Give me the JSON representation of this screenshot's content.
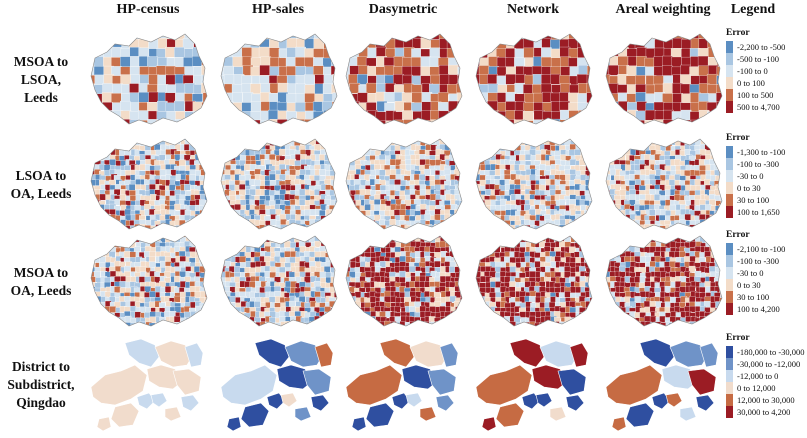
{
  "columns": [
    "HP-census",
    "HP-sales",
    "Dasymetric",
    "Network",
    "Areal weighting",
    "Legend"
  ],
  "rows": [
    {
      "label": [
        "MSOA to",
        "LSOA,",
        "Leeds"
      ],
      "shape": "leeds",
      "legend": {
        "title": "Error",
        "items": [
          "-2,200 to -500",
          "-500 to -100",
          "-100 to 0",
          "0 to 100",
          "100 to 500",
          "500 to 4,700"
        ]
      },
      "weights": [
        [
          0.1,
          0.18,
          0.32,
          0.18,
          0.14,
          0.08
        ],
        [
          0.08,
          0.14,
          0.34,
          0.2,
          0.16,
          0.08
        ],
        [
          0.04,
          0.06,
          0.1,
          0.14,
          0.26,
          0.4
        ],
        [
          0.04,
          0.06,
          0.1,
          0.14,
          0.26,
          0.4
        ],
        [
          0.04,
          0.06,
          0.1,
          0.14,
          0.26,
          0.4
        ]
      ]
    },
    {
      "label": [
        "LSOA to",
        "OA, Leeds"
      ],
      "shape": "leeds",
      "legend": {
        "title": "Error",
        "items": [
          "-1,300 to -100",
          "-100 to -300",
          "-30 to 0",
          "0 to 30",
          "30 to 100",
          "100 to 1,650"
        ]
      },
      "weights": [
        [
          0.12,
          0.18,
          0.22,
          0.22,
          0.14,
          0.12
        ],
        [
          0.12,
          0.18,
          0.22,
          0.22,
          0.14,
          0.12
        ],
        [
          0.08,
          0.18,
          0.26,
          0.26,
          0.12,
          0.1
        ],
        [
          0.08,
          0.18,
          0.26,
          0.26,
          0.12,
          0.1
        ],
        [
          0.08,
          0.18,
          0.26,
          0.26,
          0.12,
          0.1
        ]
      ]
    },
    {
      "label": [
        "MSOA to",
        "OA, Leeds"
      ],
      "shape": "leeds",
      "legend": {
        "title": "Error",
        "items": [
          "-2,100 to -100",
          "-100 to -300",
          "-30 to 0",
          "0 to 30",
          "30 to 100",
          "100 to 4,200"
        ]
      },
      "weights": [
        [
          0.1,
          0.18,
          0.26,
          0.24,
          0.12,
          0.1
        ],
        [
          0.1,
          0.18,
          0.24,
          0.22,
          0.14,
          0.12
        ],
        [
          0.04,
          0.08,
          0.12,
          0.1,
          0.12,
          0.54
        ],
        [
          0.04,
          0.08,
          0.12,
          0.1,
          0.12,
          0.54
        ],
        [
          0.04,
          0.08,
          0.12,
          0.1,
          0.12,
          0.54
        ]
      ]
    },
    {
      "label": [
        "District to",
        "Subdistrict,",
        "Qingdao"
      ],
      "shape": "qingdao",
      "legend": {
        "title": "Error",
        "items": [
          "-180,000 to -30,000",
          "-30,000 to -12,000",
          "-12,000 to 0",
          "0 to 12,000",
          "12,000 to 30,000",
          "30,000 to 4,200"
        ]
      },
      "weights": [
        [
          0.02,
          0.16,
          0.48,
          0.34,
          0.0,
          0.0
        ],
        [
          0.6,
          0.14,
          0.08,
          0.08,
          0.06,
          0.04
        ],
        [
          0.3,
          0.12,
          0.1,
          0.08,
          0.16,
          0.24
        ],
        [
          0.3,
          0.12,
          0.1,
          0.08,
          0.16,
          0.24
        ],
        [
          0.3,
          0.12,
          0.1,
          0.08,
          0.16,
          0.24
        ]
      ]
    }
  ],
  "colors": {
    "leeds": [
      "#5b8ec2",
      "#a9c6e2",
      "#d6e4f0",
      "#f3dcc8",
      "#c9704a",
      "#9b1c24"
    ],
    "qingdao": [
      "#2f4fa0",
      "#6f93c8",
      "#c8daee",
      "#f1dccc",
      "#c66b43",
      "#9b1c24"
    ]
  }
}
